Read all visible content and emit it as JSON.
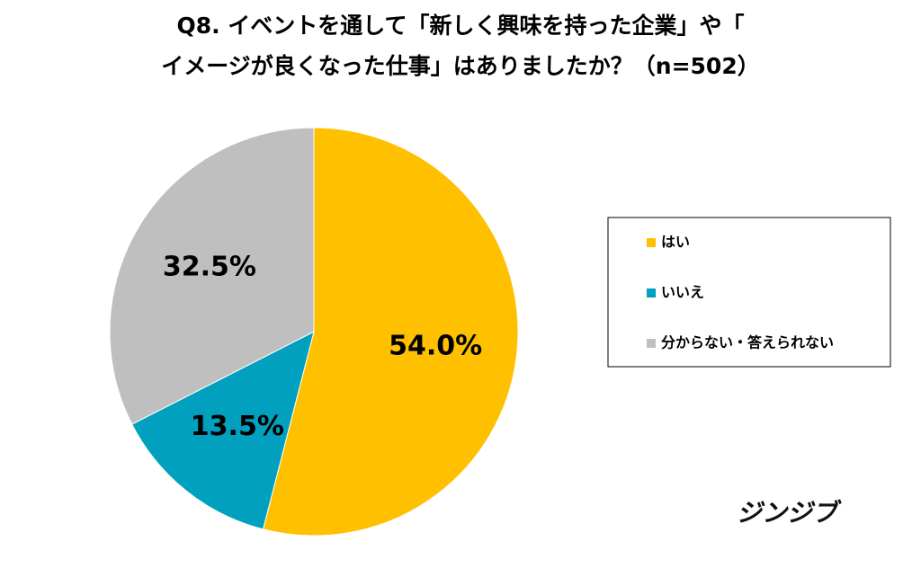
{
  "chart_data": {
    "type": "pie",
    "title": [
      "Q8. イベントを通して「新しく興味を持った企業」や「",
      "イメージが良くなった仕事」はありましたか？（n=502）"
    ],
    "categories": [
      "はい",
      "いいえ",
      "分からない・答えられない"
    ],
    "values": [
      54.0,
      13.5,
      32.5
    ],
    "value_labels": [
      "54.0%",
      "13.5%",
      "32.5%"
    ],
    "colors": [
      "#FFC000",
      "#00A0BE",
      "#BFBFBF"
    ],
    "legend": "right",
    "logo": "ジンジブ"
  }
}
